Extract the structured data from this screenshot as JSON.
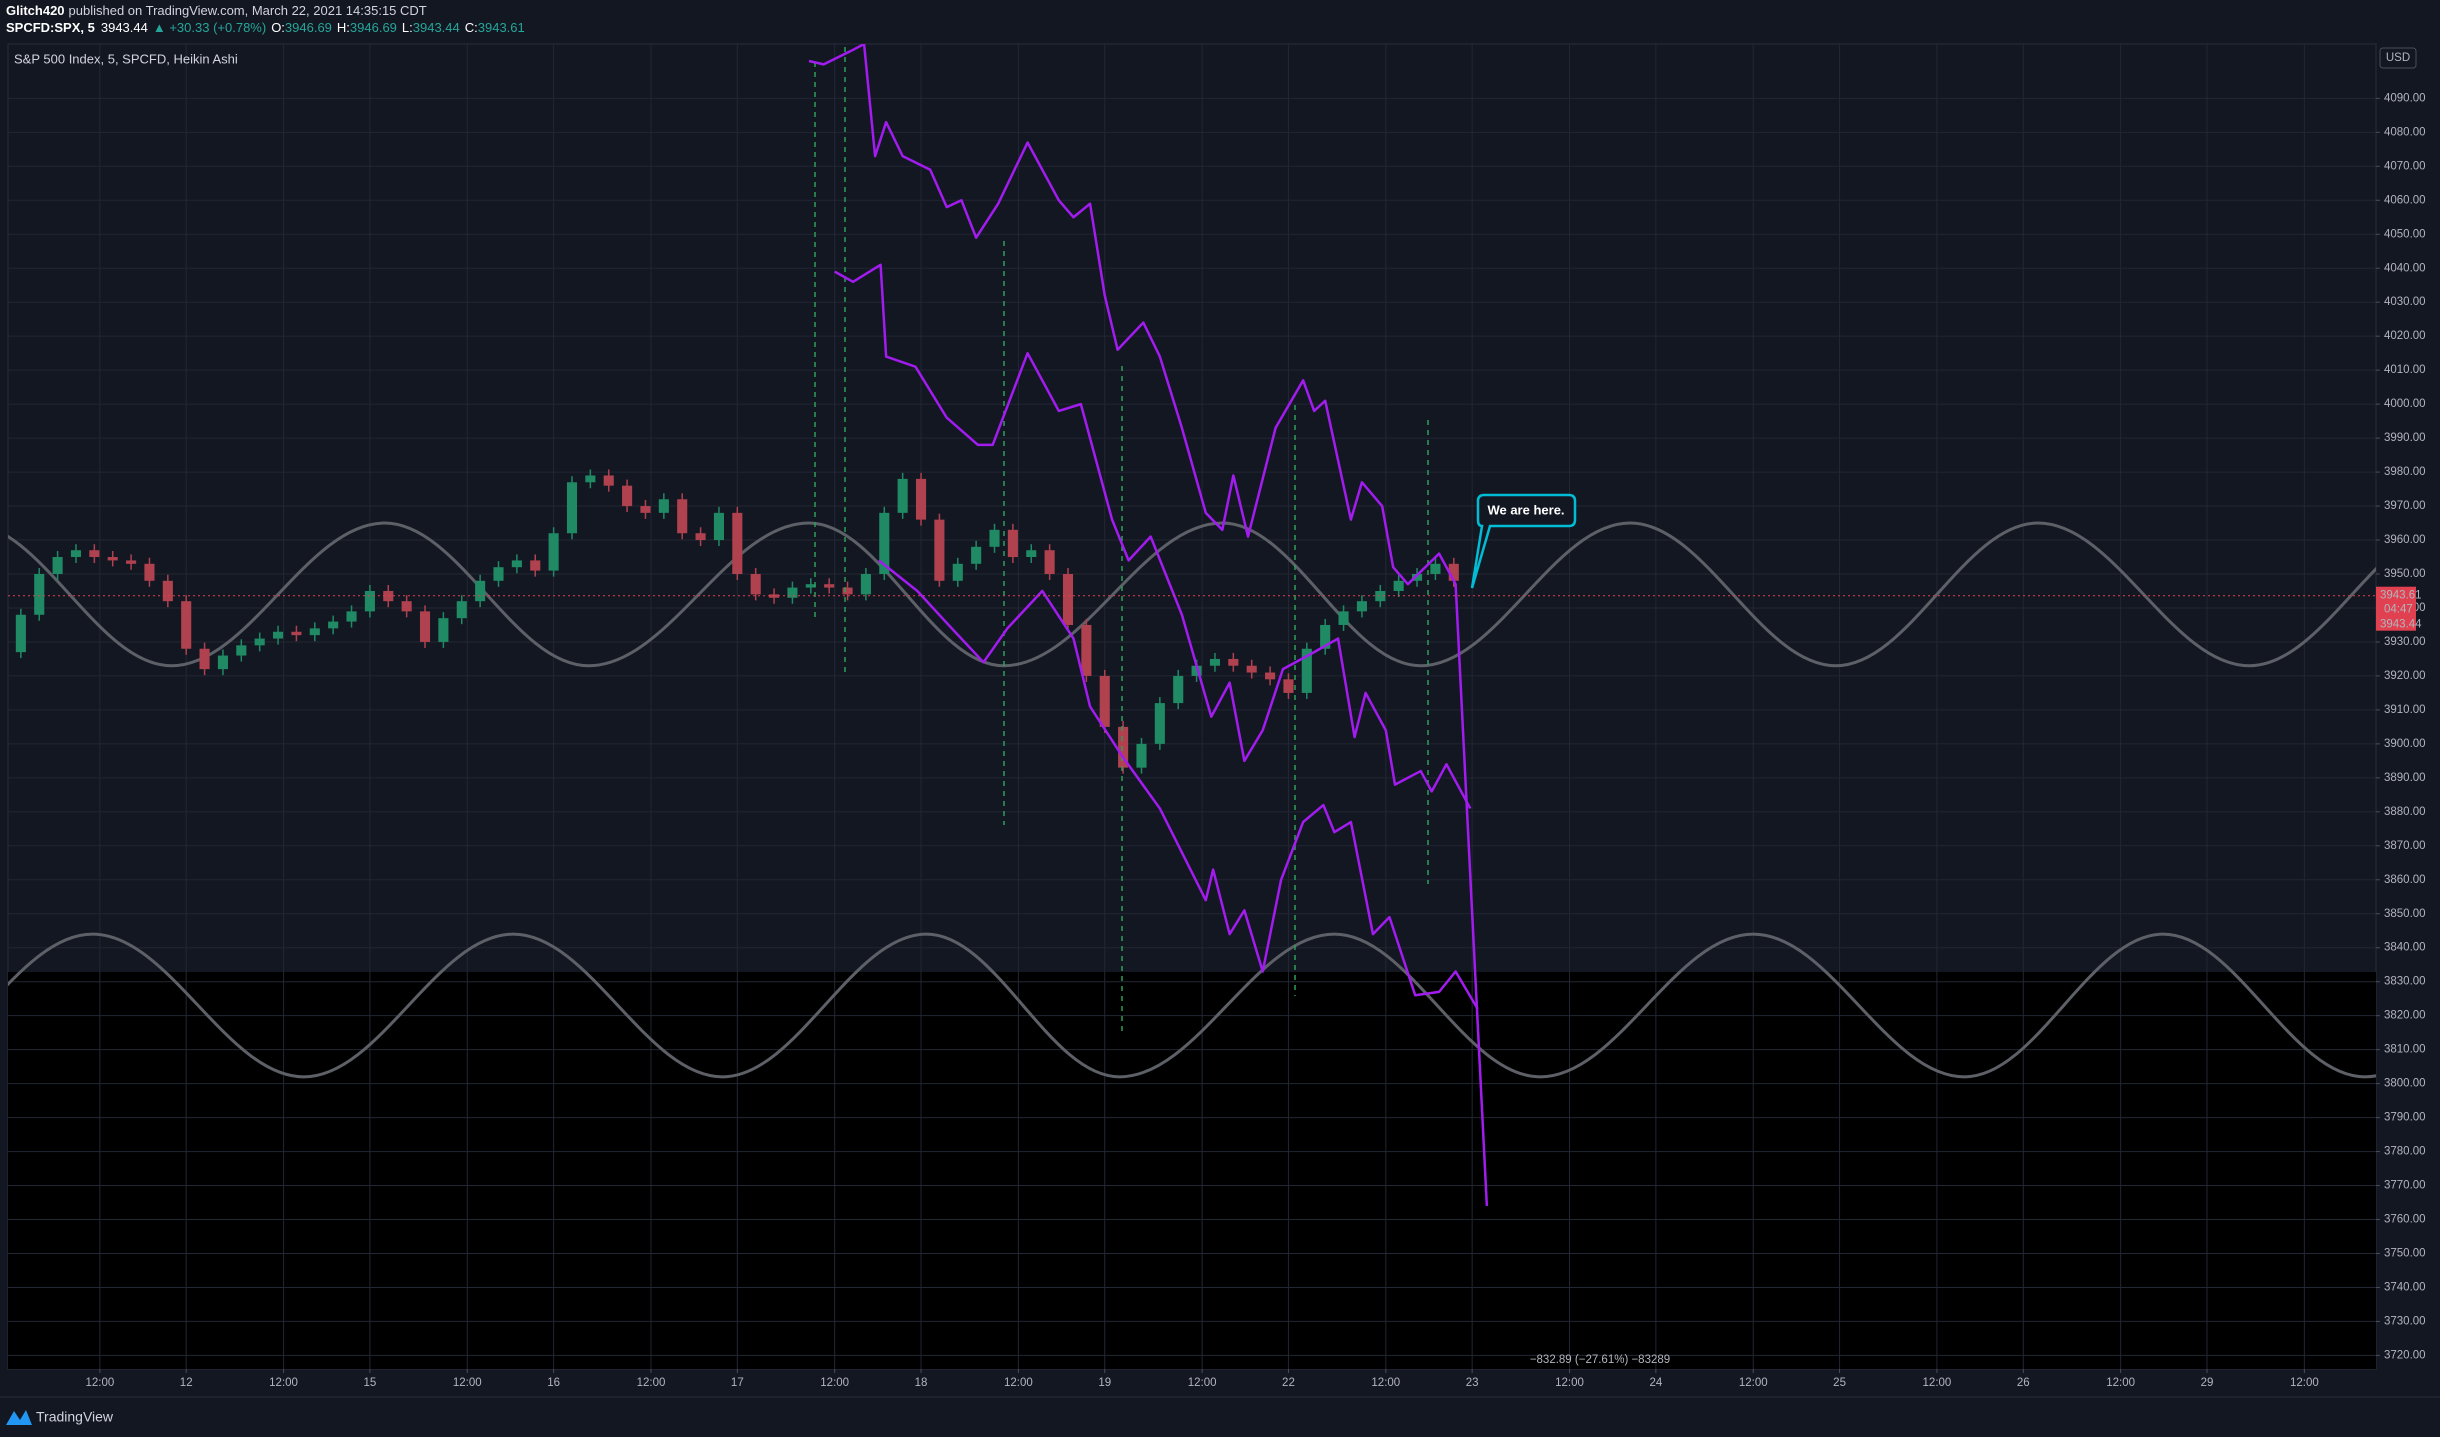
{
  "header": {
    "author": "Glitch420",
    "published": "published on TradingView.com, March 22, 2021 14:35:15 CDT",
    "symbol": "SPCFD:SPX, 5",
    "last": "3943.44",
    "change": "▲ +30.33 (+0.78%)",
    "o_label": "O:",
    "o": "3946.69",
    "h_label": "H:",
    "h": "3946.69",
    "l_label": "L:",
    "l": "3943.44",
    "c_label": "C:",
    "c": "3943.61"
  },
  "chart_data": {
    "type": "candlestick",
    "title": "S&P 500 Index, 5, SPCFD, Heikin Ashi",
    "currency": "USD",
    "up_color": "#1f8a63",
    "down_color": "#b0414f",
    "x": [
      0.0,
      0.1,
      0.2,
      0.3,
      0.4,
      0.5,
      0.6,
      0.7,
      0.8,
      0.9,
      1.0,
      1.1,
      1.2,
      1.3,
      1.4,
      1.5,
      1.6,
      1.7,
      1.8,
      1.9,
      2.0,
      2.1,
      2.2,
      2.3,
      2.4,
      2.5,
      2.6,
      2.7,
      2.8,
      2.9,
      3.0,
      3.1,
      3.2,
      3.3,
      3.4,
      3.5,
      3.6,
      3.7,
      3.8,
      3.9,
      4.0,
      4.1,
      4.2,
      4.3,
      4.4,
      4.5,
      4.6,
      4.7,
      4.8,
      4.9,
      5.0,
      5.1,
      5.2,
      5.3,
      5.4,
      5.5,
      5.6,
      5.7,
      5.8,
      5.9,
      6.0,
      6.1,
      6.2,
      6.3,
      6.4,
      6.5,
      6.6,
      6.7,
      6.8,
      6.9,
      7.0,
      7.1,
      7.2,
      7.3,
      7.4,
      7.5,
      7.6,
      7.7,
      7.8,
      7.9
    ],
    "values": [
      3927,
      3938,
      3950,
      3955,
      3957,
      3955,
      3954,
      3953,
      3948,
      3942,
      3928,
      3922,
      3926,
      3929,
      3931,
      3933,
      3932,
      3934,
      3936,
      3939,
      3945,
      3942,
      3939,
      3930,
      3937,
      3942,
      3948,
      3952,
      3954,
      3951,
      3962,
      3977,
      3979,
      3976,
      3970,
      3968,
      3972,
      3962,
      3960,
      3968,
      3950,
      3944,
      3943,
      3946,
      3947,
      3946,
      3944,
      3950,
      3968,
      3978,
      3966,
      3948,
      3953,
      3958,
      3963,
      3955,
      3957,
      3950,
      3935,
      3920,
      3905,
      3893,
      3900,
      3912,
      3920,
      3923,
      3925,
      3923,
      3921,
      3919,
      3915,
      3928,
      3935,
      3939,
      3942,
      3945,
      3948,
      3950,
      3953,
      3948
    ],
    "overlays": [
      {
        "type": "wave",
        "color": "#5d6066",
        "x": [
          -0.19,
          0.92,
          2.08,
          3.19,
          4.39,
          5.45,
          6.64,
          7.72,
          8.86,
          9.98,
          11.08,
          12.23,
          13.35
        ],
        "values": [
          3965,
          3923,
          3965,
          3923,
          3965,
          3923,
          3965,
          3923,
          3965,
          3923,
          3965,
          3923,
          3965
        ]
      },
      {
        "type": "wave",
        "color": "#5d6066",
        "x": [
          -0.65,
          0.49,
          1.64,
          2.78,
          3.92,
          5.03,
          6.08,
          7.25,
          8.37,
          9.53,
          10.68,
          11.76,
          12.86,
          14.0
        ],
        "values": [
          3802,
          3844,
          3802,
          3844,
          3802,
          3844,
          3802,
          3844,
          3802,
          3844,
          3802,
          3844,
          3802,
          3844
        ]
      },
      {
        "type": "line",
        "color": "#a21cf0",
        "x": [
          4.39,
          4.47,
          4.62,
          4.69,
          4.75,
          4.81,
          4.9,
          5.05,
          5.14,
          5.22,
          5.3,
          5.42,
          5.58,
          5.75,
          5.83,
          5.92,
          6.0,
          6.07,
          6.21,
          6.3,
          6.42,
          6.55,
          6.64,
          6.7,
          6.78,
          6.93,
          7.08,
          7.14,
          7.2,
          7.34,
          7.4,
          7.51,
          7.57,
          7.65,
          7.82,
          7.91,
          8.08
        ],
        "values": [
          4101,
          4100,
          4104,
          4106,
          4073,
          4083,
          4073,
          4069,
          4058,
          4060,
          4049,
          4059,
          4077,
          4060,
          4055,
          4059,
          4032,
          4016,
          4024,
          4014,
          3993,
          3968,
          3963,
          3979,
          3961,
          3993,
          4007,
          3998,
          4001,
          3966,
          3977,
          3970,
          3952,
          3947,
          3956,
          3947,
          3764
        ]
      },
      {
        "type": "line",
        "color": "#a21cf0",
        "x": [
          4.53,
          4.63,
          4.78,
          4.81,
          4.97,
          5.14,
          5.31,
          5.39,
          5.58,
          5.75,
          5.87,
          6.04,
          6.13,
          6.25,
          6.42,
          6.58,
          6.68,
          6.76,
          6.86,
          6.97,
          7.14,
          7.27,
          7.36,
          7.42,
          7.53,
          7.58,
          7.72,
          7.78,
          7.86,
          7.99
        ],
        "values": [
          4039,
          4036,
          4041,
          4014,
          4011,
          3996,
          3988,
          3988,
          4015,
          3998,
          4000,
          3966,
          3954,
          3961,
          3938,
          3908,
          3918,
          3895,
          3904,
          3922,
          3927,
          3931,
          3902,
          3915,
          3904,
          3888,
          3892,
          3886,
          3894,
          3881
        ]
      },
      {
        "type": "line",
        "color": "#a21cf0",
        "x": [
          4.77,
          4.98,
          5.15,
          5.34,
          5.47,
          5.66,
          5.83,
          5.92,
          6.1,
          6.3,
          6.55,
          6.59,
          6.68,
          6.76,
          6.86,
          6.96,
          7.08,
          7.19,
          7.25,
          7.34,
          7.46,
          7.55,
          7.69,
          7.82,
          7.91,
          8.03
        ],
        "values": [
          3954,
          3945,
          3935,
          3924,
          3934,
          3945,
          3931,
          3911,
          3896,
          3881,
          3854,
          3863,
          3844,
          3851,
          3833,
          3860,
          3877,
          3882,
          3874,
          3877,
          3844,
          3849,
          3826,
          3827,
          3833,
          3822
        ]
      }
    ],
    "annotation": "We are here.",
    "measure": "−832.89 (−27.61%) −83289",
    "countdown": "04:47",
    "price_tags": [
      {
        "value": 3943.61,
        "label": "3943.61"
      },
      {
        "value": 3943.44,
        "label": "3943.44"
      }
    ],
    "xlim": [
      0.03,
      12.92
    ],
    "ylim": [
      3716,
      4106
    ],
    "grid": true,
    "xticks": [
      {
        "value": 0.53,
        "label": "12:00"
      },
      {
        "value": 1,
        "label": "12"
      },
      {
        "value": 1.53,
        "label": "12:00"
      },
      {
        "value": 2,
        "label": "15"
      },
      {
        "value": 2.53,
        "label": "12:00"
      },
      {
        "value": 3,
        "label": "16"
      },
      {
        "value": 3.53,
        "label": "12:00"
      },
      {
        "value": 4,
        "label": "17"
      },
      {
        "value": 4.53,
        "label": "12:00"
      },
      {
        "value": 5,
        "label": "18"
      },
      {
        "value": 5.53,
        "label": "12:00"
      },
      {
        "value": 6,
        "label": "19"
      },
      {
        "value": 6.53,
        "label": "12:00"
      },
      {
        "value": 7,
        "label": "22"
      },
      {
        "value": 7.53,
        "label": "12:00"
      },
      {
        "value": 8,
        "label": "23"
      },
      {
        "value": 8.53,
        "label": "12:00"
      },
      {
        "value": 9,
        "label": "24"
      },
      {
        "value": 9.53,
        "label": "12:00"
      },
      {
        "value": 10,
        "label": "25"
      },
      {
        "value": 10.53,
        "label": "12:00"
      },
      {
        "value": 11,
        "label": "26"
      },
      {
        "value": 11.53,
        "label": "12:00"
      },
      {
        "value": 12,
        "label": "29"
      },
      {
        "value": 12.53,
        "label": "12:00"
      }
    ],
    "yticks": [
      {
        "value": 3720,
        "label": "3720.00"
      },
      {
        "value": 3730,
        "label": "3730.00"
      },
      {
        "value": 3740,
        "label": "3740.00"
      },
      {
        "value": 3750,
        "label": "3750.00"
      },
      {
        "value": 3760,
        "label": "3760.00"
      },
      {
        "value": 3770,
        "label": "3770.00"
      },
      {
        "value": 3780,
        "label": "3780.00"
      },
      {
        "value": 3790,
        "label": "3790.00"
      },
      {
        "value": 3800,
        "label": "3800.00"
      },
      {
        "value": 3810,
        "label": "3810.00"
      },
      {
        "value": 3820,
        "label": "3820.00"
      },
      {
        "value": 3830,
        "label": "3830.00"
      },
      {
        "value": 3840,
        "label": "3840.00"
      },
      {
        "value": 3850,
        "label": "3850.00"
      },
      {
        "value": 3860,
        "label": "3860.00"
      },
      {
        "value": 3870,
        "label": "3870.00"
      },
      {
        "value": 3880,
        "label": "3880.00"
      },
      {
        "value": 3890,
        "label": "3890.00"
      },
      {
        "value": 3900,
        "label": "3900.00"
      },
      {
        "value": 3910,
        "label": "3910.00"
      },
      {
        "value": 3920,
        "label": "3920.00"
      },
      {
        "value": 3930,
        "label": "3930.00"
      },
      {
        "value": 3940,
        "label": "3940.00"
      },
      {
        "value": 3950,
        "label": "3950.00"
      },
      {
        "value": 3960,
        "label": "3960.00"
      },
      {
        "value": 3970,
        "label": "3970.00"
      },
      {
        "value": 3980,
        "label": "3980.00"
      },
      {
        "value": 3990,
        "label": "3990.00"
      },
      {
        "value": 4000,
        "label": "4000.00"
      },
      {
        "value": 4010,
        "label": "4010.00"
      },
      {
        "value": 4020,
        "label": "4020.00"
      },
      {
        "value": 4030,
        "label": "4030.00"
      },
      {
        "value": 4040,
        "label": "4040.00"
      },
      {
        "value": 4050,
        "label": "4050.00"
      },
      {
        "value": 4060,
        "label": "4060.00"
      },
      {
        "value": 4070,
        "label": "4070.00"
      },
      {
        "value": 4080,
        "label": "4080.00"
      },
      {
        "value": 4090,
        "label": "4090.00"
      }
    ]
  },
  "footer": {
    "brand": "TradingView"
  }
}
